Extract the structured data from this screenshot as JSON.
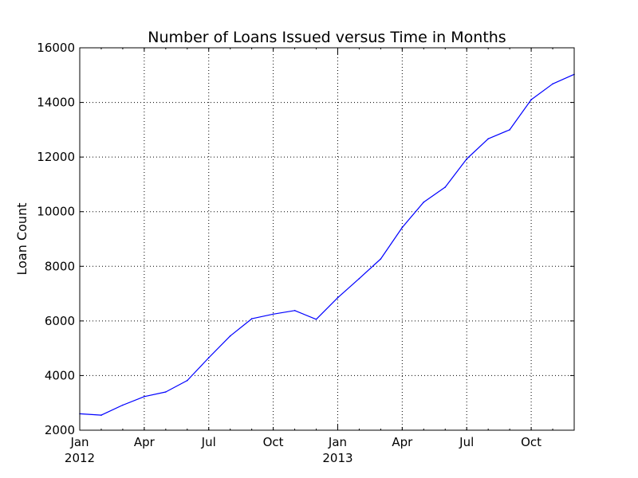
{
  "chart_data": {
    "type": "line",
    "title": "Number of Loans Issued versus Time in Months",
    "xlabel": "",
    "ylabel": "Loan Count",
    "ylim": [
      2000,
      16000
    ],
    "xlim": [
      "2012-01",
      "2013-12"
    ],
    "grid": true,
    "legend": "none",
    "x_ticks": [
      {
        "at": "2012-01",
        "label": "Jan",
        "year": "2012"
      },
      {
        "at": "2012-04",
        "label": "Apr",
        "year": ""
      },
      {
        "at": "2012-07",
        "label": "Jul",
        "year": ""
      },
      {
        "at": "2012-10",
        "label": "Oct",
        "year": ""
      },
      {
        "at": "2013-01",
        "label": "Jan",
        "year": "2013"
      },
      {
        "at": "2013-04",
        "label": "Apr",
        "year": ""
      },
      {
        "at": "2013-07",
        "label": "Jul",
        "year": ""
      },
      {
        "at": "2013-10",
        "label": "Oct",
        "year": ""
      }
    ],
    "y_ticks": [
      2000,
      4000,
      6000,
      8000,
      10000,
      12000,
      14000,
      16000
    ],
    "series": [
      {
        "color": "#0000ff",
        "x": [
          "2012-01",
          "2012-02",
          "2012-03",
          "2012-04",
          "2012-05",
          "2012-06",
          "2012-07",
          "2012-08",
          "2012-09",
          "2012-10",
          "2012-11",
          "2012-12",
          "2013-01",
          "2013-02",
          "2013-03",
          "2013-04",
          "2013-05",
          "2013-06",
          "2013-07",
          "2013-08",
          "2013-09",
          "2013-10",
          "2013-11",
          "2013-12"
        ],
        "values": [
          2600,
          2550,
          2920,
          3230,
          3400,
          3820,
          4650,
          5450,
          6080,
          6250,
          6380,
          6060,
          6850,
          7550,
          8270,
          9420,
          10350,
          10900,
          11930,
          12670,
          13000,
          14100,
          14680,
          15030
        ]
      }
    ]
  }
}
